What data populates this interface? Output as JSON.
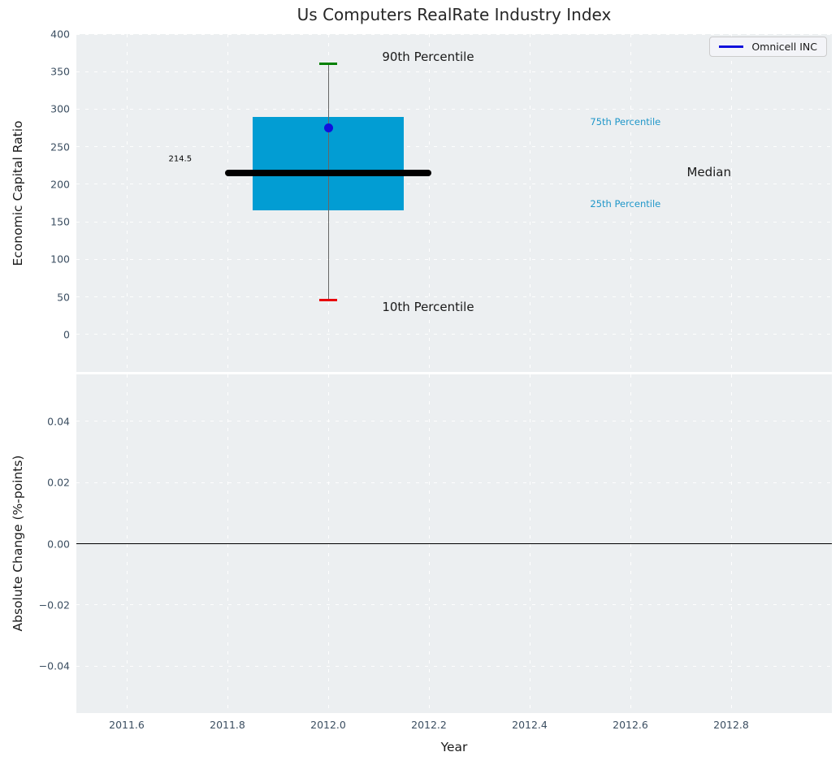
{
  "chart_data": {
    "type": "boxplot",
    "title": "Us Computers RealRate Industry Index",
    "xlabel": "Year",
    "xlim": [
      2011.5,
      2013.0
    ],
    "xticks": [
      {
        "v": 2011.6,
        "label": "2011.6"
      },
      {
        "v": 2011.8,
        "label": "2011.8"
      },
      {
        "v": 2012.0,
        "label": "2012.0"
      },
      {
        "v": 2012.2,
        "label": "2012.2"
      },
      {
        "v": 2012.4,
        "label": "2012.4"
      },
      {
        "v": 2012.6,
        "label": "2012.6"
      },
      {
        "v": 2012.8,
        "label": "2012.8"
      }
    ],
    "legend": {
      "label": "Omnicell INC",
      "line_color": "#1010DC",
      "position": "upper right"
    },
    "panels": [
      {
        "id": "top",
        "ylabel": "Economic Capital Ratio",
        "ylim": [
          -50,
          400
        ],
        "yticks": [
          {
            "v": 0,
            "label": "0"
          },
          {
            "v": 50,
            "label": "50"
          },
          {
            "v": 100,
            "label": "100"
          },
          {
            "v": 150,
            "label": "150"
          },
          {
            "v": 200,
            "label": "200"
          },
          {
            "v": 250,
            "label": "250"
          },
          {
            "v": 300,
            "label": "300"
          },
          {
            "v": 350,
            "label": "350"
          },
          {
            "v": 400,
            "label": "400"
          }
        ],
        "boxplot": {
          "x": 2012.0,
          "p10": 46,
          "p25": 165,
          "median": 214.5,
          "p75": 290,
          "p90": 361,
          "box_halfwidth": 0.15,
          "median_halfwidth": 0.205,
          "cap_halfwidth": 0.017,
          "box_color": "#029DD3",
          "median_color": "#000000",
          "p90_cap_color": "#008000",
          "p10_cap_color": "#E8000B",
          "whisker_color": "#666666"
        },
        "series": [
          {
            "name": "Omnicell INC",
            "type": "point",
            "color": "#1010DC",
            "x": 2012.0,
            "y": 275
          }
        ],
        "annotations": [
          {
            "text": "214.5",
            "x": 2011.683,
            "y": 233,
            "style": "small-black"
          },
          {
            "text": "90th Percentile",
            "x": 2012.107,
            "y": 370,
            "style": "big-black"
          },
          {
            "text": "10th Percentile",
            "x": 2012.107,
            "y": 37,
            "style": "big-black"
          },
          {
            "text": "75th Percentile",
            "x": 2012.52,
            "y": 283,
            "style": "cyan"
          },
          {
            "text": "25th Percentile",
            "x": 2012.52,
            "y": 174,
            "style": "cyan"
          },
          {
            "text": "Median",
            "x": 2012.712,
            "y": 216,
            "style": "big-black"
          }
        ]
      },
      {
        "id": "bottom",
        "ylabel": "Absolute Change (%-points)",
        "ylim": [
          -0.0553,
          0.0553
        ],
        "yticks": [
          {
            "v": 0.04,
            "label": "0.04"
          },
          {
            "v": 0.02,
            "label": "0.02"
          },
          {
            "v": 0.0,
            "label": "0.00"
          },
          {
            "v": -0.02,
            "label": "−0.02"
          },
          {
            "v": -0.04,
            "label": "−0.04"
          }
        ],
        "zero_line": {
          "y": 0.0,
          "color": "#000000"
        },
        "annotations": []
      }
    ],
    "colors": {
      "panel_bg": "#ECEFF1",
      "grid": "#FFFFFF",
      "tick_label": "#3B4E61",
      "title": "#262626",
      "cyan_annotation": "#2097C9"
    }
  }
}
